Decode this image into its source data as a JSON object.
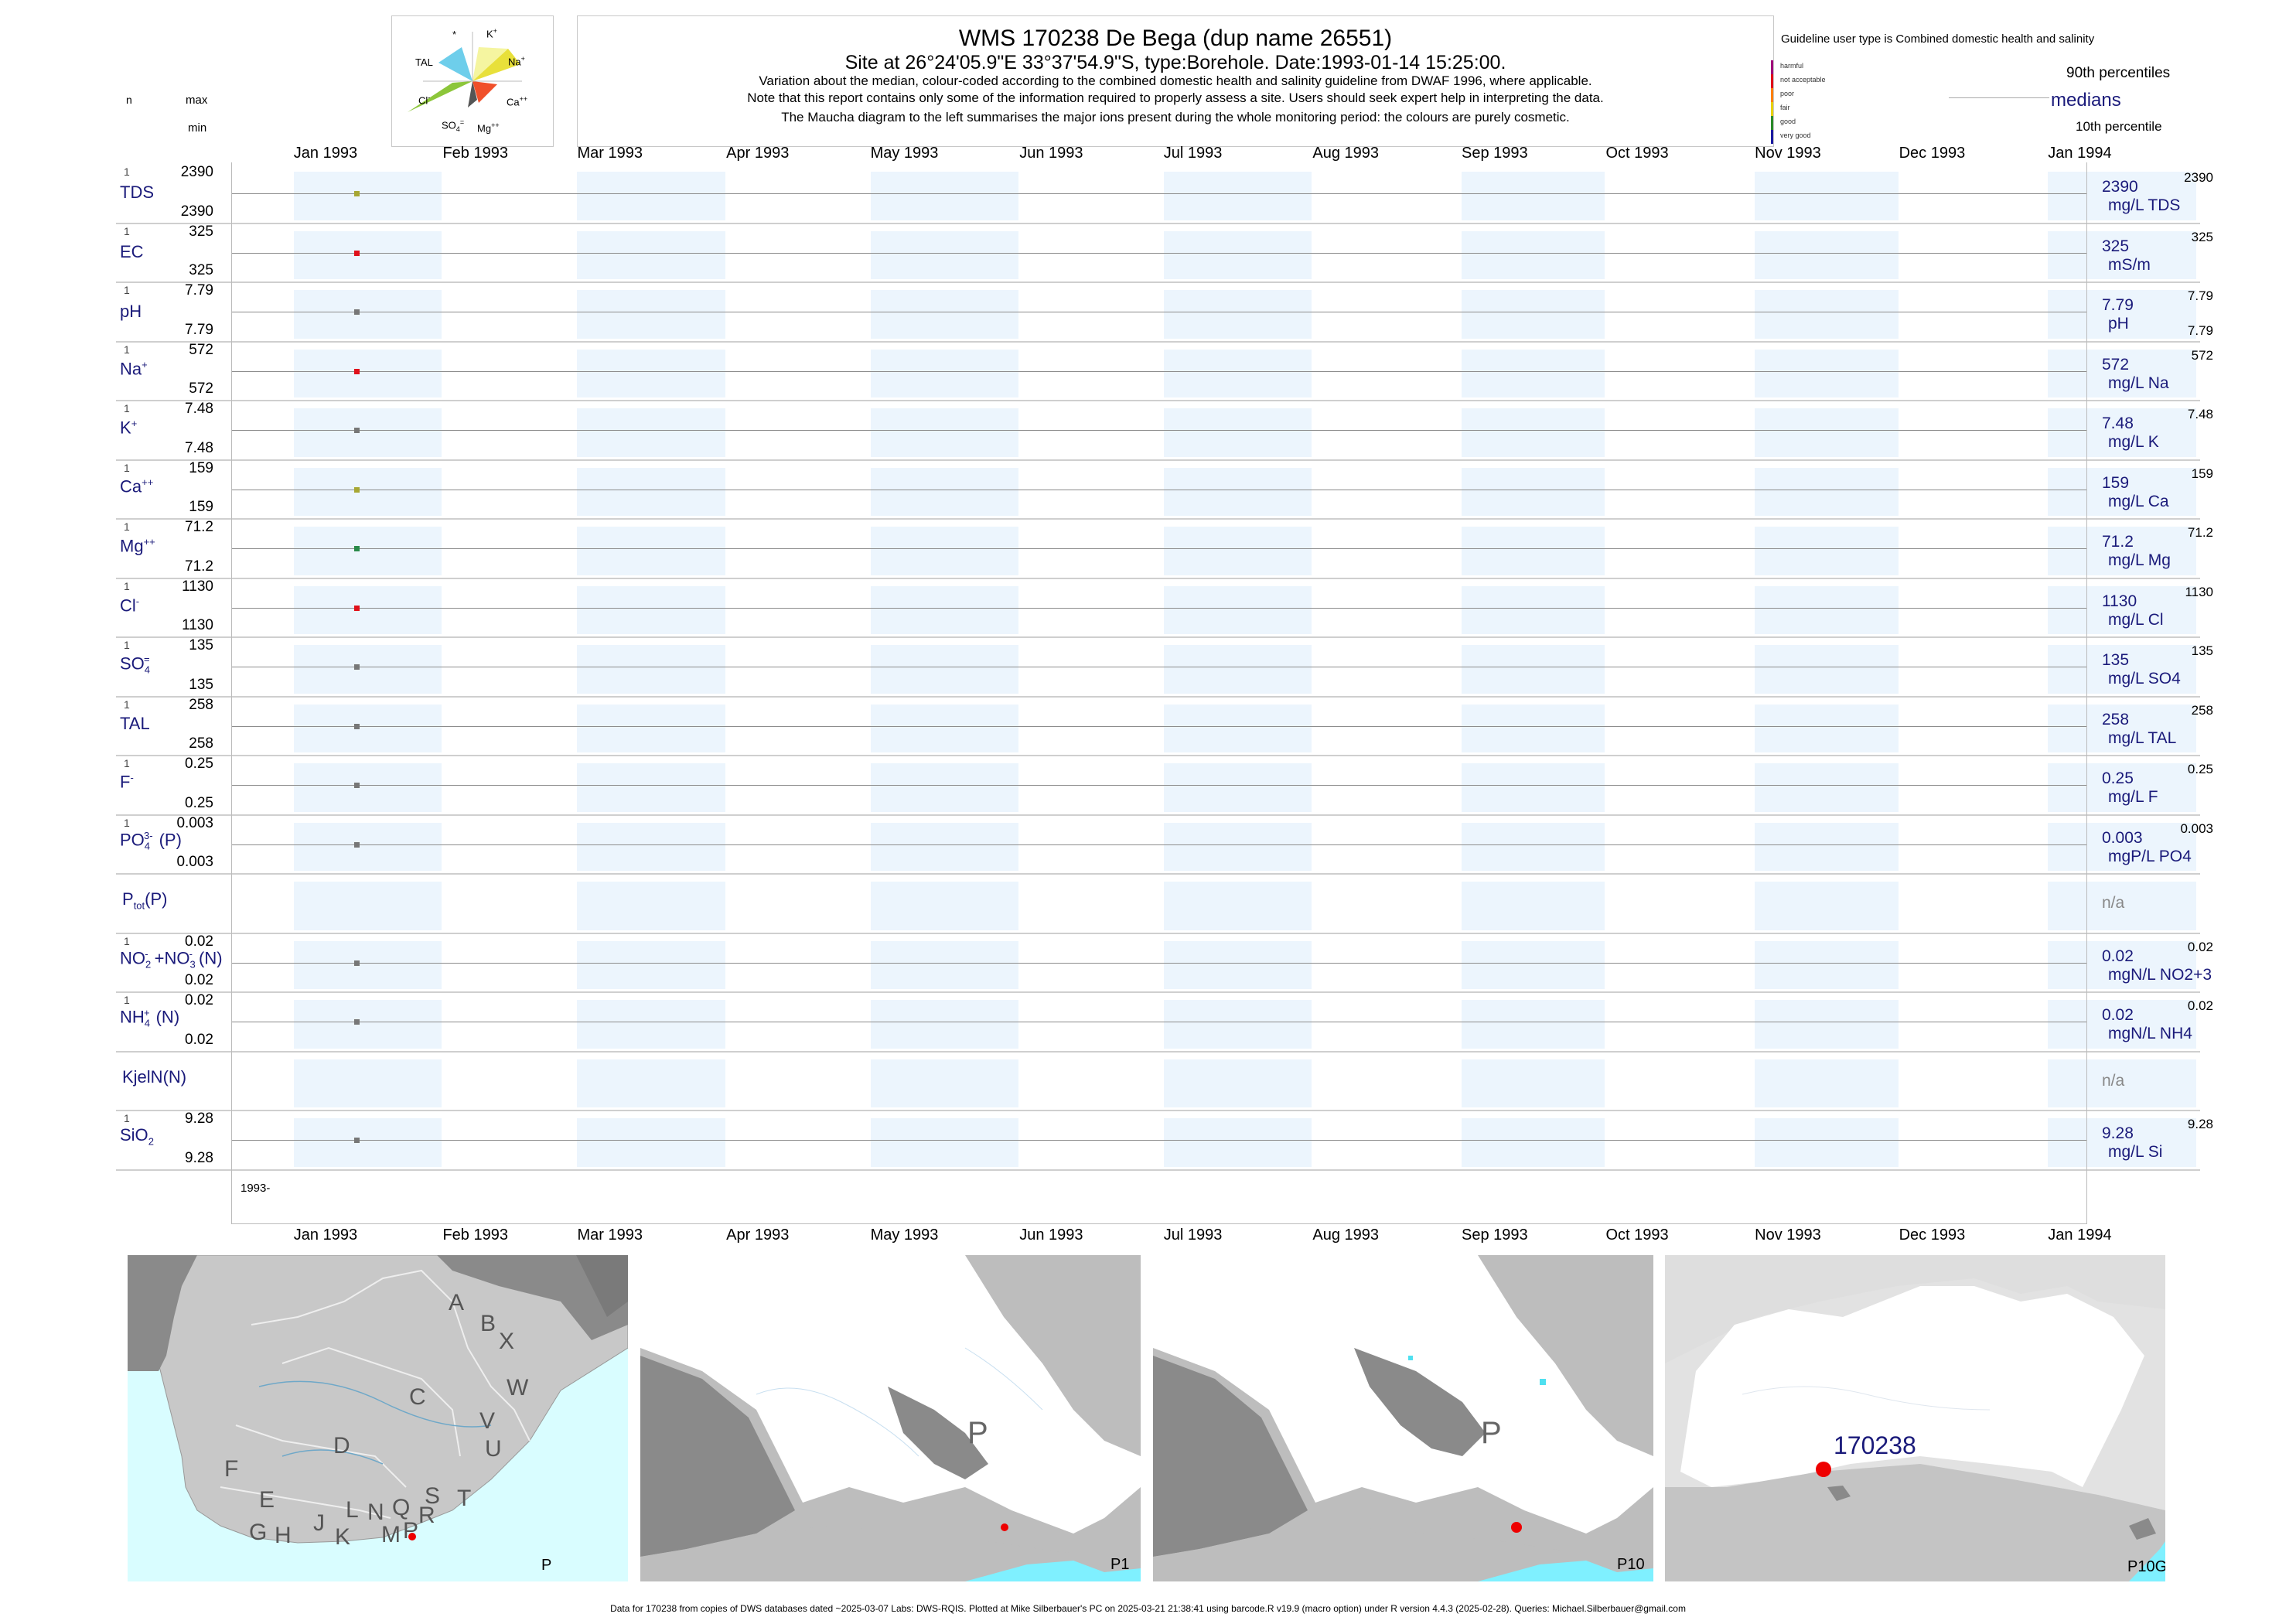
{
  "header": {
    "title": "WMS 170238  De Bega (dup name 26551)",
    "subtitle": "Site at 26°24'05.9\"E 33°37'54.9\"S, type:Borehole. Date:1993-01-14 15:25:00.",
    "note1": "Variation about the median,  colour-coded according to the combined domestic health and salinity guideline from DWAF 1996, where applicable.",
    "note2": "Note that this report contains only some of the information required to properly assess a site. Users should seek expert help in interpreting the data.",
    "note3": "The Maucha diagram to the left summarises the major ions present during the whole monitoring period: the colours are purely cosmetic."
  },
  "left_header": {
    "n": "n",
    "max": "max",
    "min": "min"
  },
  "maucha": {
    "labels": {
      "star": "*",
      "k": "K",
      "k_sup": "+",
      "tal": "TAL",
      "na": "Na",
      "na_sup": "+",
      "cl": "Cl",
      "cl_sup": "-",
      "ca": "Ca",
      "ca_sup": "++",
      "so4": "SO",
      "so4_sub": "4",
      "so4_sup": "=",
      "mg": "Mg",
      "mg_sup": "++"
    }
  },
  "guideline": {
    "title": "Guideline user type is Combined domestic health and salinity",
    "classes": [
      {
        "label": "harmful",
        "color": "#a0007a"
      },
      {
        "label": "not acceptable",
        "color": "#e0001a"
      },
      {
        "label": "poor",
        "color": "#ff8000"
      },
      {
        "label": "fair",
        "color": "#e8d000"
      },
      {
        "label": "good",
        "color": "#2a8a2a"
      },
      {
        "label": "very good",
        "color": "#1a1aa0"
      }
    ],
    "p90": "90th percentiles",
    "medians": "medians",
    "p10": "10th percentile"
  },
  "months": [
    "Jan 1993",
    "Feb 1993",
    "Mar 1993",
    "Apr 1993",
    "May 1993",
    "Jun 1993",
    "Jul 1993",
    "Aug 1993",
    "Sep 1993",
    "Oct 1993",
    "Nov 1993",
    "Dec 1993",
    "Jan 1994"
  ],
  "year_label": "1993-",
  "chart_data": {
    "type": "scatter",
    "x": [
      "1993-01-14"
    ],
    "xlim": [
      "1992-12-19",
      "1994-01-09"
    ],
    "rows": [
      {
        "param": "TDS",
        "n": "1",
        "max": "2390",
        "min": "2390",
        "value": 2390,
        "color": "#a7a733",
        "median_label": "2390",
        "unit": "mg/L TDS",
        "p90": "2390",
        "p10": ""
      },
      {
        "param": "EC",
        "n": "1",
        "max": "325",
        "min": "325",
        "value": 325,
        "color": "#e0101a",
        "median_label": "325",
        "unit": "mS/m",
        "p90": "325",
        "p10": ""
      },
      {
        "param": "pH",
        "n": "1",
        "max": "7.79",
        "min": "7.79",
        "value": 7.79,
        "color": "#777777",
        "median_label": "7.79",
        "unit": "pH",
        "p90": "7.79",
        "p10": "7.79"
      },
      {
        "param": "Na",
        "n": "1",
        "max": "572",
        "min": "572",
        "value": 572,
        "color": "#e0101a",
        "median_label": "572",
        "unit": "mg/L Na",
        "p90": "572",
        "p10": ""
      },
      {
        "param": "K",
        "n": "1",
        "max": "7.48",
        "min": "7.48",
        "value": 7.48,
        "color": "#777777",
        "median_label": "7.48",
        "unit": "mg/L K",
        "p90": "7.48",
        "p10": ""
      },
      {
        "param": "Ca",
        "n": "1",
        "max": "159",
        "min": "159",
        "value": 159,
        "color": "#a7a733",
        "median_label": "159",
        "unit": "mg/L Ca",
        "p90": "159",
        "p10": ""
      },
      {
        "param": "Mg",
        "n": "1",
        "max": "71.2",
        "min": "71.2",
        "value": 71.2,
        "color": "#2a8a4a",
        "median_label": "71.2",
        "unit": "mg/L Mg",
        "p90": "71.2",
        "p10": ""
      },
      {
        "param": "Cl",
        "n": "1",
        "max": "1130",
        "min": "1130",
        "value": 1130,
        "color": "#e0101a",
        "median_label": "1130",
        "unit": "mg/L Cl",
        "p90": "1130",
        "p10": ""
      },
      {
        "param": "SO4",
        "n": "1",
        "max": "135",
        "min": "135",
        "value": 135,
        "color": "#777777",
        "median_label": "135",
        "unit": "mg/L SO4",
        "p90": "135",
        "p10": ""
      },
      {
        "param": "TAL",
        "n": "1",
        "max": "258",
        "min": "258",
        "value": 258,
        "color": "#777777",
        "median_label": "258",
        "unit": "mg/L TAL",
        "p90": "258",
        "p10": ""
      },
      {
        "param": "F",
        "n": "1",
        "max": "0.25",
        "min": "0.25",
        "value": 0.25,
        "color": "#777777",
        "median_label": "0.25",
        "unit": "mg/L F",
        "p90": "0.25",
        "p10": ""
      },
      {
        "param": "PO4(P)",
        "n": "1",
        "max": "0.003",
        "min": "0.003",
        "value": 0.003,
        "color": "#777777",
        "median_label": "0.003",
        "unit": "mgP/L PO4",
        "p90": "0.003",
        "p10": ""
      },
      {
        "param": "Ptot(P)",
        "n": "",
        "max": "",
        "min": "",
        "value": null,
        "color": "",
        "median_label": "n/a",
        "unit": "",
        "p90": "",
        "p10": ""
      },
      {
        "param": "NO2+NO3(N)",
        "n": "1",
        "max": "0.02",
        "min": "0.02",
        "value": 0.02,
        "color": "#777777",
        "median_label": "0.02",
        "unit": "mgN/L NO2+3",
        "p90": "0.02",
        "p10": ""
      },
      {
        "param": "NH4(N)",
        "n": "1",
        "max": "0.02",
        "min": "0.02",
        "value": 0.02,
        "color": "#777777",
        "median_label": "0.02",
        "unit": "mgN/L NH4",
        "p90": "0.02",
        "p10": ""
      },
      {
        "param": "KjelN(N)",
        "n": "",
        "max": "",
        "min": "",
        "value": null,
        "color": "",
        "median_label": "n/a",
        "unit": "",
        "p90": "",
        "p10": ""
      },
      {
        "param": "SiO2",
        "n": "1",
        "max": "9.28",
        "min": "9.28",
        "value": 9.28,
        "color": "#777777",
        "median_label": "9.28",
        "unit": "mg/L Si",
        "p90": "9.28",
        "p10": ""
      }
    ]
  },
  "labels": {
    "tds": "TDS",
    "ec": "EC",
    "ph": "pH",
    "na": "Na",
    "na_sup": "+",
    "k": "K",
    "k_sup": "+",
    "ca": "Ca",
    "ca_sup": "++",
    "mg": "Mg",
    "mg_sup": "++",
    "cl": "Cl",
    "cl_sup": "-",
    "so": "SO",
    "so_sub": "4",
    "so_sup": "=",
    "tal": "TAL",
    "f": "F",
    "f_sup": "-",
    "po": "PO",
    "po_sub": "4",
    "po_sup": "3-",
    "po_tail": "(P)",
    "ptot": "P",
    "ptot_sub": "tot",
    "ptot_tail": "(P)",
    "no2": "NO",
    "no2_sub": "2",
    "no2_sup": "-",
    "plus": "+",
    "no3": "NO",
    "no3_sub": "3",
    "no3_sup": "-",
    "no_tail": "(N)",
    "nh": "NH",
    "nh_sub": "4",
    "nh_sup": "+",
    "nh_tail": "(N)",
    "kjel": "KjelN(N)",
    "si": "SiO",
    "si_sub": "2"
  },
  "maps": {
    "regions": [
      "A",
      "B",
      "X",
      "W",
      "C",
      "V",
      "U",
      "D",
      "T",
      "F",
      "E",
      "G",
      "H",
      "J",
      "K",
      "L",
      "M",
      "N",
      "Q",
      "P",
      "R",
      "S"
    ],
    "panel1_label": "P",
    "panel2_big": "P",
    "panel2_label": "P1",
    "panel3_big": "P",
    "panel3_label": "P10",
    "site_id": "170238",
    "panel4_label": "P10G"
  },
  "footer": "Data for 170238 from copies of DWS databases dated ~2025-03-07 Labs: DWS-RQIS. Plotted at Mike Silberbauer's PC on 2025-03-21 21:38:41 using barcode.R v19.9 (macro option) under R version 4.4.3 (2025-02-28). Queries: Michael.Silberbauer@gmail.com"
}
